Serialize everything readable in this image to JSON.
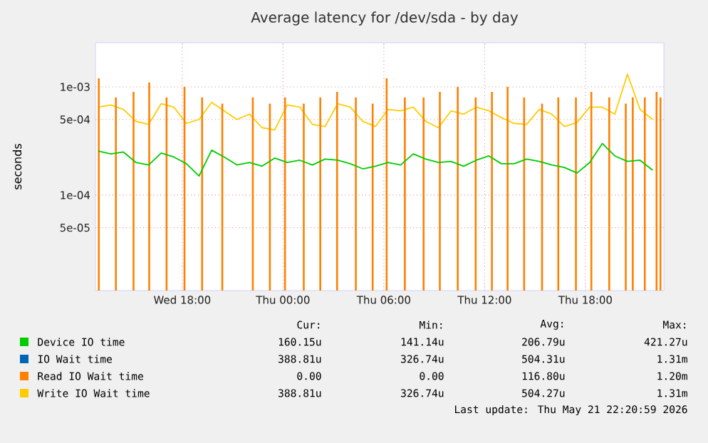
{
  "chart_data": {
    "type": "line",
    "title": "Average latency for /dev/sda - by day",
    "ylabel": "seconds",
    "log": "y",
    "grid": true,
    "legend": "bottom",
    "xlim": [
      "2026-05-20T12:50",
      "2026-05-21T22:40"
    ],
    "ylim": [
      1.31e-05,
      0.00256
    ],
    "xticks": [
      {
        "value": "2026-05-20T18:00",
        "label": "Wed 18:00"
      },
      {
        "value": "2026-05-21T00:00",
        "label": "Thu 00:00"
      },
      {
        "value": "2026-05-21T06:00",
        "label": "Thu 06:00"
      },
      {
        "value": "2026-05-21T12:00",
        "label": "Thu 12:00"
      },
      {
        "value": "2026-05-21T18:00",
        "label": "Thu 18:00"
      }
    ],
    "yticks": [
      {
        "value": 5e-05,
        "label": "5e-05"
      },
      {
        "value": 0.0001,
        "label": "1e-04"
      },
      {
        "value": 0.0005,
        "label": "5e-04"
      },
      {
        "value": 0.001,
        "label": "1e-03"
      }
    ],
    "x": [
      "2026-05-20T13:00",
      "2026-05-20T13:45",
      "2026-05-20T14:30",
      "2026-05-20T15:15",
      "2026-05-20T16:00",
      "2026-05-20T16:45",
      "2026-05-20T17:30",
      "2026-05-20T18:15",
      "2026-05-20T19:00",
      "2026-05-20T19:45",
      "2026-05-20T20:30",
      "2026-05-20T21:15",
      "2026-05-20T22:00",
      "2026-05-20T22:45",
      "2026-05-20T23:30",
      "2026-05-21T00:15",
      "2026-05-21T01:00",
      "2026-05-21T01:45",
      "2026-05-21T02:30",
      "2026-05-21T03:15",
      "2026-05-21T04:00",
      "2026-05-21T04:45",
      "2026-05-21T05:30",
      "2026-05-21T06:15",
      "2026-05-21T07:00",
      "2026-05-21T07:45",
      "2026-05-21T08:30",
      "2026-05-21T09:15",
      "2026-05-21T10:00",
      "2026-05-21T10:45",
      "2026-05-21T11:30",
      "2026-05-21T12:15",
      "2026-05-21T13:00",
      "2026-05-21T13:45",
      "2026-05-21T14:30",
      "2026-05-21T15:15",
      "2026-05-21T16:00",
      "2026-05-21T16:45",
      "2026-05-21T17:30",
      "2026-05-21T18:15",
      "2026-05-21T19:00",
      "2026-05-21T19:45",
      "2026-05-21T20:30",
      "2026-05-21T21:15",
      "2026-05-21T22:00"
    ],
    "series": [
      {
        "name": "Device IO time",
        "color": "#00cc00",
        "values": [
          0.000255,
          0.00024,
          0.00025,
          0.0002,
          0.00019,
          0.000245,
          0.000225,
          0.000195,
          0.00015,
          0.00026,
          0.000225,
          0.00019,
          0.0002,
          0.000185,
          0.00022,
          0.0002,
          0.00021,
          0.00019,
          0.000215,
          0.00021,
          0.000195,
          0.000175,
          0.000185,
          0.0002,
          0.00019,
          0.00024,
          0.000215,
          0.0002,
          0.000205,
          0.000185,
          0.00021,
          0.00023,
          0.000195,
          0.000195,
          0.000215,
          0.000205,
          0.00019,
          0.00018,
          0.00016,
          0.0002,
          0.0003,
          0.00023,
          0.000205,
          0.00021,
          0.00017
        ]
      },
      {
        "name": "IO Wait time",
        "color": "#0066b3",
        "values": [
          null,
          null,
          null,
          null,
          null,
          null,
          null,
          null,
          null,
          null,
          null,
          null,
          null,
          null,
          null,
          null,
          null,
          null,
          null,
          null,
          null,
          null,
          null,
          null,
          null,
          null,
          null,
          null,
          null,
          null,
          null,
          null,
          null,
          null,
          null,
          null,
          null,
          null,
          null,
          null,
          null,
          null,
          null,
          null,
          null
        ]
      },
      {
        "name": "Read IO Wait time",
        "type": "bar",
        "color": "#ff8000",
        "x": [
          "2026-05-20T13:02",
          "2026-05-20T14:03",
          "2026-05-20T15:06",
          "2026-05-20T16:02",
          "2026-05-20T17:04",
          "2026-05-20T18:08",
          "2026-05-20T19:11",
          "2026-05-20T20:23",
          "2026-05-20T22:12",
          "2026-05-20T23:13",
          "2026-05-21T00:07",
          "2026-05-21T01:14",
          "2026-05-21T02:13",
          "2026-05-21T03:13",
          "2026-05-21T04:20",
          "2026-05-21T05:20",
          "2026-05-21T06:10",
          "2026-05-21T07:15",
          "2026-05-21T08:22",
          "2026-05-21T09:20",
          "2026-05-21T10:24",
          "2026-05-21T11:28",
          "2026-05-21T12:26",
          "2026-05-21T13:22",
          "2026-05-21T14:21",
          "2026-05-21T15:25",
          "2026-05-21T16:23",
          "2026-05-21T17:26",
          "2026-05-21T18:21",
          "2026-05-21T19:25",
          "2026-05-21T20:24",
          "2026-05-21T20:49",
          "2026-05-21T21:32",
          "2026-05-21T22:14",
          "2026-05-21T22:28"
        ],
        "values": [
          0.0012,
          0.0008,
          0.0009,
          0.0011,
          0.0008,
          0.001,
          0.0008,
          0.0007,
          0.0008,
          0.0007,
          0.0008,
          0.0007,
          0.0008,
          0.0009,
          0.0008,
          0.0007,
          0.0012,
          0.0008,
          0.0008,
          0.0009,
          0.001,
          0.0008,
          0.0009,
          0.001,
          0.0008,
          0.0007,
          0.0008,
          0.0008,
          0.0009,
          0.0008,
          0.0007,
          0.0008,
          0.0008,
          0.0009,
          0.0008
        ]
      },
      {
        "name": "Write IO Wait time",
        "color": "#ffcc00",
        "values": [
          0.00065,
          0.00068,
          0.00062,
          0.00048,
          0.00045,
          0.0007,
          0.00065,
          0.00046,
          0.0005,
          0.00072,
          0.0006,
          0.0005,
          0.00056,
          0.00042,
          0.0004,
          0.00068,
          0.00065,
          0.00045,
          0.00043,
          0.0007,
          0.00065,
          0.00048,
          0.00043,
          0.00062,
          0.0006,
          0.00065,
          0.00048,
          0.00042,
          0.0006,
          0.00056,
          0.00065,
          0.0006,
          0.00052,
          0.00046,
          0.00045,
          0.00062,
          0.00056,
          0.00043,
          0.00047,
          0.00065,
          0.00065,
          0.00056,
          0.00131,
          0.00062,
          0.0005
        ]
      }
    ],
    "annotations": [
      "Cur:",
      "Min:",
      "Avg:",
      "Max:",
      "160.15u",
      "141.14u",
      "206.79u",
      "421.27u",
      "388.81u",
      "326.74u",
      "504.31u",
      "1.31m",
      "0.00",
      "0.00",
      "116.80u",
      "1.20m",
      "388.81u",
      "326.74u",
      "504.27u",
      "1.31m",
      "Last update: Thu May 21 22:20:59 2026"
    ]
  }
}
